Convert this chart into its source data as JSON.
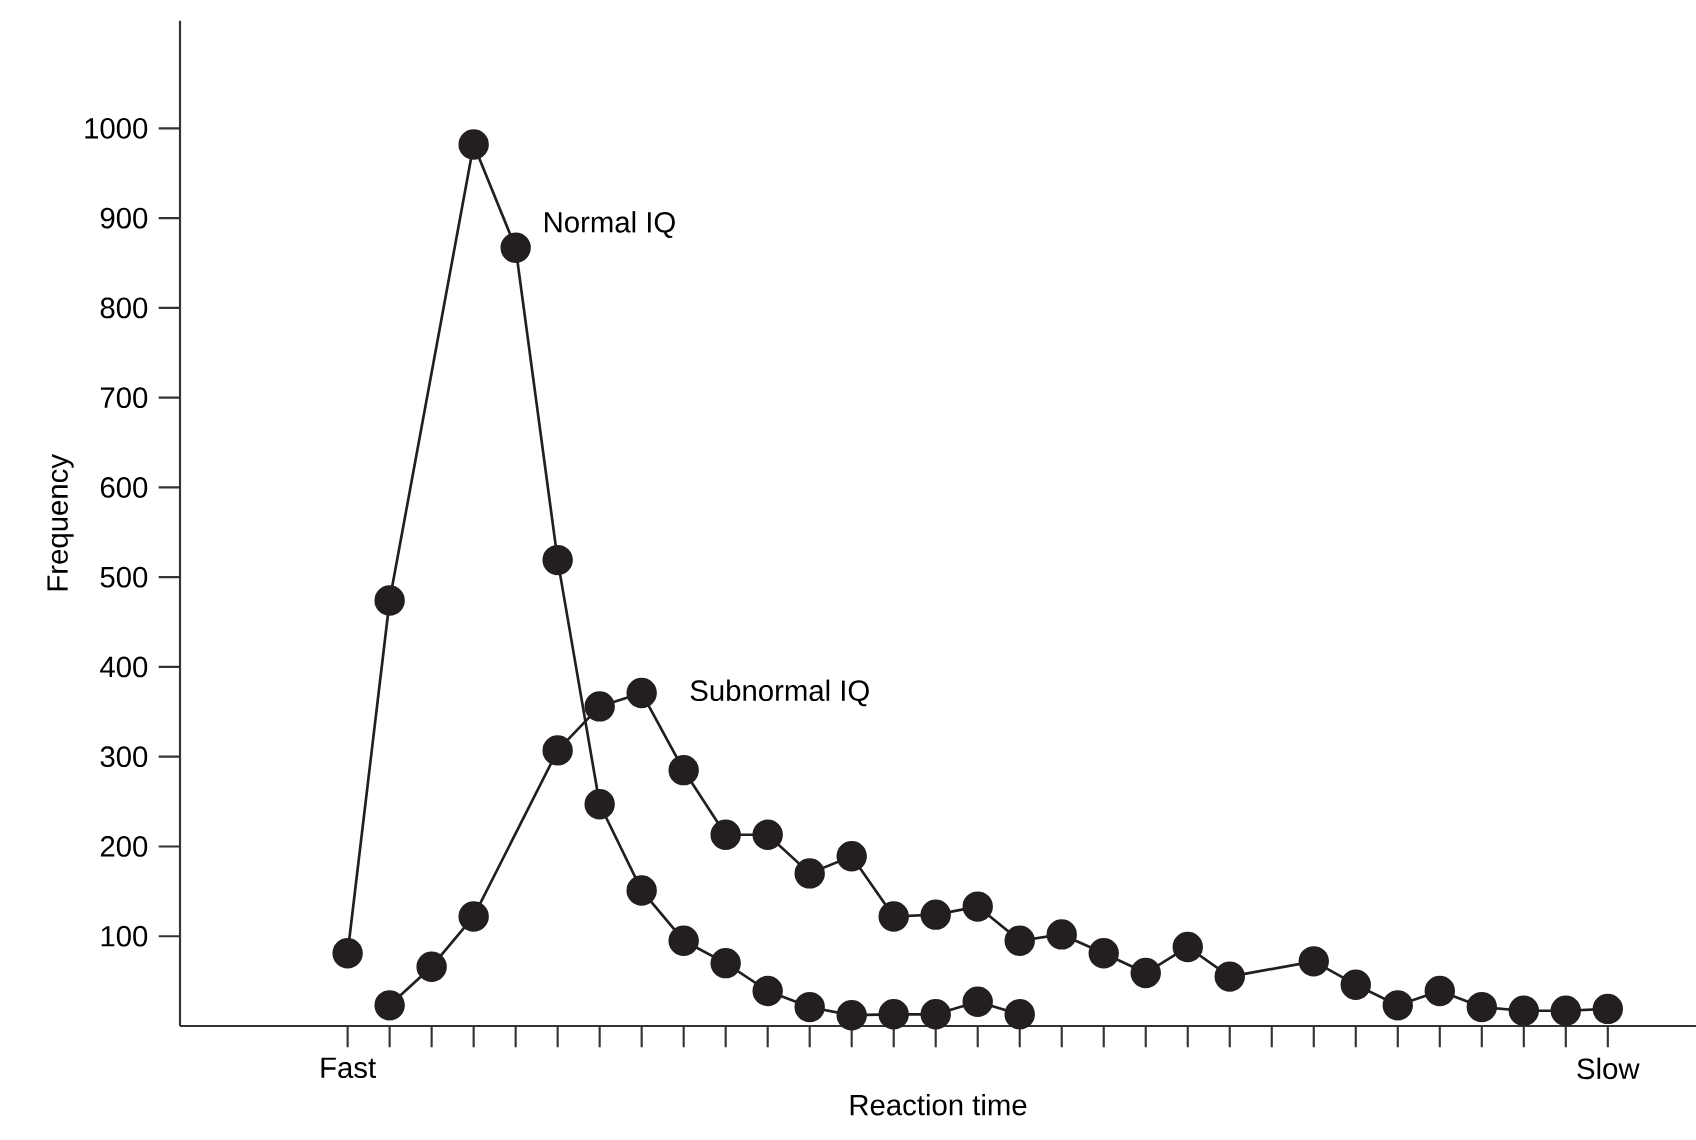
{
  "chart_data": {
    "type": "line",
    "xlabel": "Reaction time",
    "ylabel": "Frequency",
    "ylim": [
      0,
      1120
    ],
    "categories": [
      "Fast",
      null,
      null,
      null,
      null,
      null,
      null,
      null,
      null,
      null,
      null,
      null,
      null,
      null,
      null,
      null,
      null,
      null,
      null,
      null,
      null,
      null,
      null,
      null,
      null,
      null,
      null,
      null,
      null,
      null,
      "Slow"
    ],
    "yticks": [
      100,
      200,
      300,
      400,
      500,
      600,
      700,
      800,
      900,
      1000
    ],
    "grid": false,
    "legend": false,
    "marker": "circle",
    "line_style": "solid",
    "series": [
      {
        "name": "Normal IQ",
        "color": "#231f20",
        "values": [
          81,
          474,
          null,
          982,
          867,
          519,
          247,
          151,
          95,
          70,
          39,
          21,
          12,
          13,
          13,
          27,
          13,
          null,
          null,
          null,
          null,
          null,
          null,
          null,
          null,
          null,
          null,
          null,
          null,
          null,
          null
        ]
      },
      {
        "name": "Subnormal IQ",
        "color": "#231f20",
        "values": [
          null,
          23,
          66,
          122,
          null,
          307,
          356,
          371,
          285,
          213,
          213,
          170,
          189,
          122,
          124,
          133,
          95,
          102,
          81,
          59,
          88,
          55,
          null,
          72,
          46,
          23,
          39,
          21,
          17,
          17,
          19
        ]
      }
    ]
  }
}
